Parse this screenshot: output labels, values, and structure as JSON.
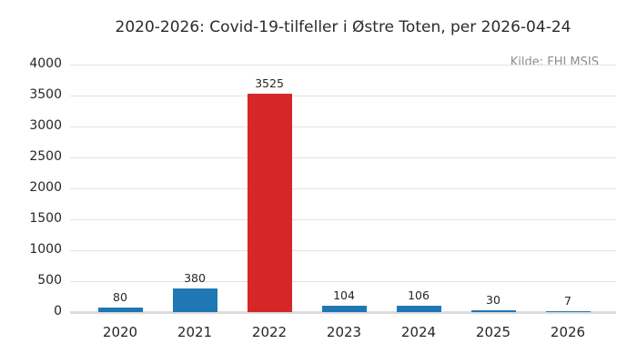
{
  "chart_data": {
    "type": "bar",
    "title": "2020-2026: Covid-19-tilfeller i Østre Toten, per 2026-04-24",
    "source": "Kilde: FHI MSIS",
    "categories": [
      "2020",
      "2021",
      "2022",
      "2023",
      "2024",
      "2025",
      "2026"
    ],
    "values": [
      80,
      380,
      3525,
      104,
      106,
      30,
      7
    ],
    "bar_colors": [
      "#1f77b4",
      "#1f77b4",
      "#d62728",
      "#1f77b4",
      "#1f77b4",
      "#1f77b4",
      "#1f77b4"
    ],
    "highlight_category": "2022",
    "xlabel": "",
    "ylabel": "",
    "ylim": [
      0,
      4000
    ],
    "yticks": [
      0,
      500,
      1000,
      1500,
      2000,
      2500,
      3000,
      3500,
      4000
    ],
    "grid": true,
    "legend": false,
    "value_labels": true,
    "colors": {
      "bar_default": "#1f77b4",
      "bar_highlight": "#d62728",
      "grid": "#e3e3e3",
      "baseline": "#dbdbdb",
      "text": "#262626",
      "source_text": "#8e8e8e",
      "background": "#ffffff"
    }
  }
}
